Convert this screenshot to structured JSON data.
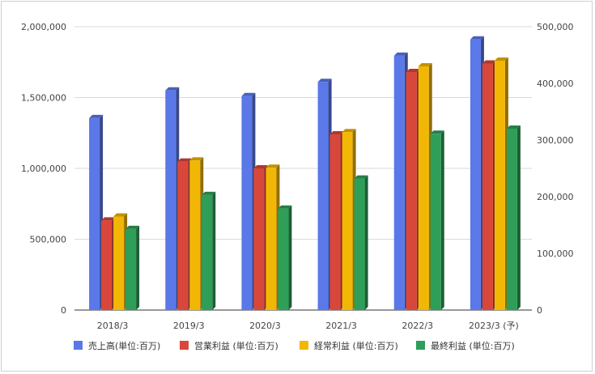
{
  "chart_data": {
    "type": "bar",
    "style": "3d-clustered-column",
    "categories": [
      "2018/3",
      "2019/3",
      "2020/3",
      "2021/3",
      "2022/3",
      "2023/3 (予)"
    ],
    "series": [
      {
        "name": "売上高(単位:百万)",
        "values": [
          1355000,
          1550000,
          1510000,
          1610000,
          1795000,
          1910000
        ],
        "color": "#5b78e8",
        "axis": "left"
      },
      {
        "name": "営業利益 (単位:百万)",
        "values": [
          158000,
          262000,
          250000,
          310000,
          420000,
          435000
        ],
        "color": "#d9473a",
        "axis": "right"
      },
      {
        "name": "経常利益 (単位:百万)",
        "values": [
          165000,
          264000,
          251000,
          314000,
          430000,
          440000
        ],
        "color": "#f2b705",
        "axis": "right"
      },
      {
        "name": "最終利益 (単位:百万)",
        "values": [
          143000,
          203000,
          179000,
          232000,
          311000,
          320000
        ],
        "color": "#2e9e58",
        "axis": "right"
      }
    ],
    "y_left": {
      "min": 0,
      "max": 2000000,
      "ticks": [
        "0",
        "500,000",
        "1,000,000",
        "1,500,000",
        "2,000,000"
      ]
    },
    "y_right": {
      "min": 0,
      "max": 500000,
      "ticks": [
        "0",
        "100,000",
        "200,000",
        "300,000",
        "400,000",
        "500,000"
      ]
    },
    "grid": true,
    "legend": "bottom"
  }
}
